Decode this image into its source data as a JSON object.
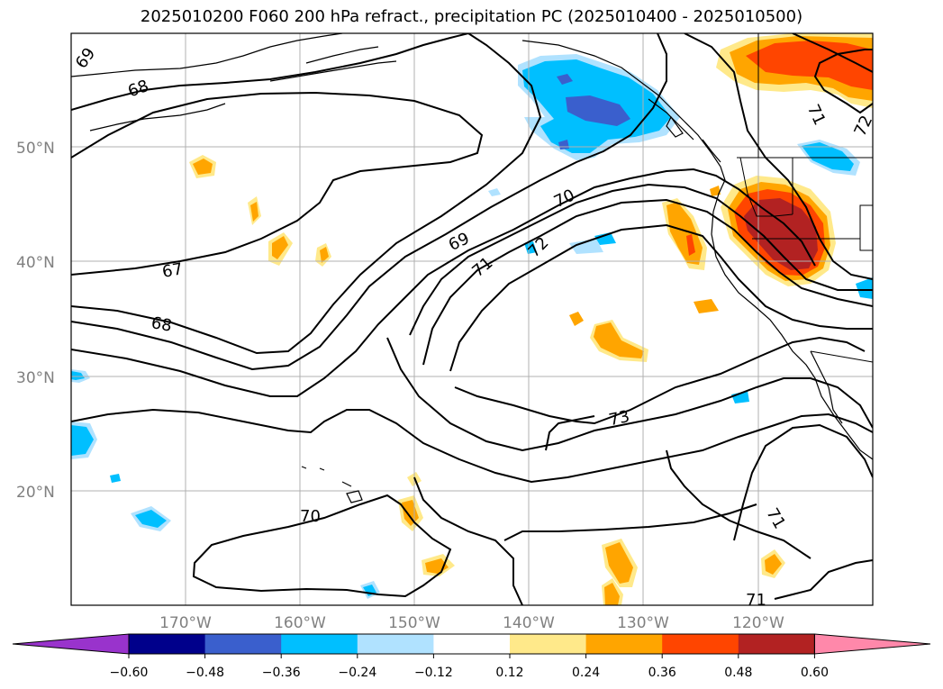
{
  "title": "2025010200 F060 200 hPa refract., precipitation PC (2025010400 - 2025010500)",
  "map": {
    "lat_labels": [
      "50°N",
      "40°N",
      "30°N",
      "20°N"
    ],
    "lon_labels": [
      "170°W",
      "160°W",
      "150°W",
      "140°W",
      "130°W",
      "120°W"
    ],
    "contour_labels": [
      "69",
      "68",
      "67",
      "68",
      "69",
      "70",
      "71",
      "72",
      "73",
      "70",
      "71",
      "71",
      "71",
      "72"
    ]
  },
  "colorbar": {
    "colors": [
      "#9933cc",
      "#00008b",
      "#3a5fcd",
      "#00bfff",
      "#b0e2ff",
      "#ffffff",
      "#ffe98a",
      "#ffa500",
      "#ff4500",
      "#b22222",
      "#ff88aa"
    ],
    "ticks": [
      "−0.60",
      "−0.48",
      "−0.36",
      "−0.24",
      "−0.12",
      "0.12",
      "0.24",
      "0.36",
      "0.48",
      "0.60"
    ]
  }
}
